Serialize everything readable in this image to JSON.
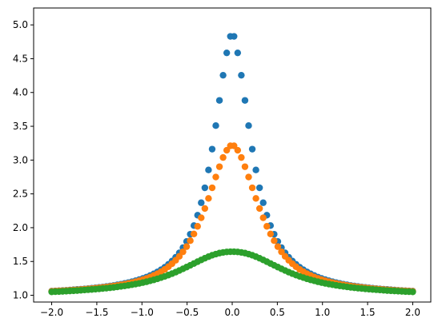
{
  "chart_data": {
    "type": "scatter",
    "title": "",
    "xlabel": "",
    "ylabel": "",
    "xlim": [
      -2.2,
      2.2
    ],
    "ylim": [
      0.9,
      5.25
    ],
    "grid": false,
    "x_ticks": [
      -2.0,
      -1.5,
      -1.0,
      -0.5,
      0.0,
      0.5,
      1.0,
      1.5,
      2.0
    ],
    "x_tick_labels": [
      "−2.0",
      "−1.5",
      "−1.0",
      "−0.5",
      "0.0",
      "0.5",
      "1.0",
      "1.5",
      "2.0"
    ],
    "y_ticks": [
      1.0,
      1.5,
      2.0,
      2.5,
      3.0,
      3.5,
      4.0,
      4.5,
      5.0
    ],
    "y_tick_labels": [
      "1.0",
      "1.5",
      "2.0",
      "2.5",
      "3.0",
      "3.5",
      "4.0",
      "4.5",
      "5.0"
    ],
    "x": [
      -2.0,
      -1.9596,
      -1.9192,
      -1.8788,
      -1.8384,
      -1.798,
      -1.7576,
      -1.7172,
      -1.6768,
      -1.6364,
      -1.596,
      -1.5556,
      -1.5152,
      -1.4747,
      -1.4343,
      -1.3939,
      -1.3535,
      -1.3131,
      -1.2727,
      -1.2323,
      -1.1919,
      -1.1515,
      -1.1111,
      -1.0707,
      -1.0303,
      -0.9899,
      -0.9495,
      -0.9091,
      -0.8687,
      -0.8283,
      -0.7879,
      -0.7475,
      -0.7071,
      -0.6667,
      -0.6263,
      -0.5859,
      -0.5455,
      -0.5051,
      -0.4646,
      -0.4242,
      -0.3838,
      -0.3434,
      -0.303,
      -0.2626,
      -0.2222,
      -0.1818,
      -0.1414,
      -0.101,
      -0.0606,
      -0.0202,
      0.0202,
      0.0606,
      0.101,
      0.1414,
      0.1818,
      0.2222,
      0.2626,
      0.303,
      0.3434,
      0.3838,
      0.4242,
      0.4646,
      0.5051,
      0.5455,
      0.5859,
      0.6263,
      0.6667,
      0.7071,
      0.7475,
      0.7879,
      0.8283,
      0.8687,
      0.9091,
      0.9495,
      0.9899,
      1.0303,
      1.0707,
      1.1111,
      1.1515,
      1.1919,
      1.2323,
      1.2727,
      1.3131,
      1.3535,
      1.3939,
      1.4343,
      1.4747,
      1.5152,
      1.5556,
      1.596,
      1.6364,
      1.6768,
      1.7172,
      1.7576,
      1.798,
      1.8384,
      1.8788,
      1.9192,
      1.9596,
      2.0
    ],
    "series": [
      {
        "color": "#1f77b4",
        "values": [
          1.062,
          1.065,
          1.068,
          1.071,
          1.074,
          1.078,
          1.082,
          1.086,
          1.09,
          1.094,
          1.099,
          1.104,
          1.11,
          1.116,
          1.122,
          1.129,
          1.137,
          1.145,
          1.154,
          1.164,
          1.175,
          1.187,
          1.2,
          1.215,
          1.231,
          1.249,
          1.269,
          1.292,
          1.317,
          1.346,
          1.378,
          1.415,
          1.457,
          1.506,
          1.562,
          1.628,
          1.705,
          1.796,
          1.903,
          2.031,
          2.185,
          2.369,
          2.59,
          2.854,
          3.162,
          3.51,
          3.883,
          4.255,
          4.586,
          4.83,
          4.83,
          4.586,
          4.255,
          3.883,
          3.51,
          3.162,
          2.854,
          2.59,
          2.369,
          2.185,
          2.031,
          1.903,
          1.796,
          1.705,
          1.628,
          1.562,
          1.506,
          1.457,
          1.415,
          1.378,
          1.346,
          1.317,
          1.292,
          1.269,
          1.249,
          1.231,
          1.215,
          1.2,
          1.187,
          1.175,
          1.164,
          1.154,
          1.145,
          1.137,
          1.129,
          1.122,
          1.116,
          1.11,
          1.104,
          1.099,
          1.094,
          1.09,
          1.086,
          1.082,
          1.078,
          1.074,
          1.071,
          1.068,
          1.065,
          1.062
        ]
      },
      {
        "color": "#ff7f0e",
        "values": [
          1.059,
          1.062,
          1.065,
          1.068,
          1.071,
          1.074,
          1.078,
          1.081,
          1.085,
          1.09,
          1.094,
          1.099,
          1.104,
          1.11,
          1.116,
          1.122,
          1.129,
          1.137,
          1.145,
          1.154,
          1.164,
          1.175,
          1.187,
          1.2,
          1.215,
          1.231,
          1.249,
          1.27,
          1.293,
          1.319,
          1.349,
          1.383,
          1.422,
          1.467,
          1.518,
          1.576,
          1.643,
          1.72,
          1.808,
          1.907,
          2.02,
          2.146,
          2.284,
          2.433,
          2.59,
          2.749,
          2.902,
          3.038,
          3.145,
          3.211,
          3.211,
          3.145,
          3.038,
          2.902,
          2.749,
          2.59,
          2.433,
          2.284,
          2.146,
          2.02,
          1.907,
          1.808,
          1.72,
          1.643,
          1.576,
          1.518,
          1.467,
          1.422,
          1.383,
          1.349,
          1.319,
          1.293,
          1.27,
          1.249,
          1.231,
          1.215,
          1.2,
          1.187,
          1.175,
          1.164,
          1.154,
          1.145,
          1.137,
          1.129,
          1.122,
          1.116,
          1.11,
          1.104,
          1.099,
          1.094,
          1.09,
          1.085,
          1.081,
          1.078,
          1.074,
          1.071,
          1.068,
          1.065,
          1.062,
          1.059
        ]
      },
      {
        "color": "#2ca02c",
        "values": [
          1.05,
          1.053,
          1.055,
          1.058,
          1.061,
          1.064,
          1.067,
          1.07,
          1.074,
          1.078,
          1.082,
          1.086,
          1.09,
          1.095,
          1.1,
          1.105,
          1.111,
          1.117,
          1.124,
          1.131,
          1.139,
          1.147,
          1.156,
          1.166,
          1.176,
          1.188,
          1.2,
          1.214,
          1.228,
          1.244,
          1.261,
          1.279,
          1.299,
          1.32,
          1.342,
          1.366,
          1.391,
          1.417,
          1.443,
          1.47,
          1.497,
          1.523,
          1.548,
          1.571,
          1.592,
          1.609,
          1.624,
          1.634,
          1.641,
          1.644,
          1.644,
          1.641,
          1.634,
          1.624,
          1.609,
          1.592,
          1.571,
          1.548,
          1.523,
          1.497,
          1.47,
          1.443,
          1.417,
          1.391,
          1.366,
          1.342,
          1.32,
          1.299,
          1.279,
          1.261,
          1.244,
          1.228,
          1.214,
          1.2,
          1.188,
          1.176,
          1.166,
          1.156,
          1.147,
          1.139,
          1.131,
          1.124,
          1.117,
          1.111,
          1.105,
          1.1,
          1.095,
          1.09,
          1.086,
          1.082,
          1.078,
          1.074,
          1.07,
          1.067,
          1.064,
          1.061,
          1.058,
          1.055,
          1.053,
          1.05
        ]
      }
    ]
  }
}
